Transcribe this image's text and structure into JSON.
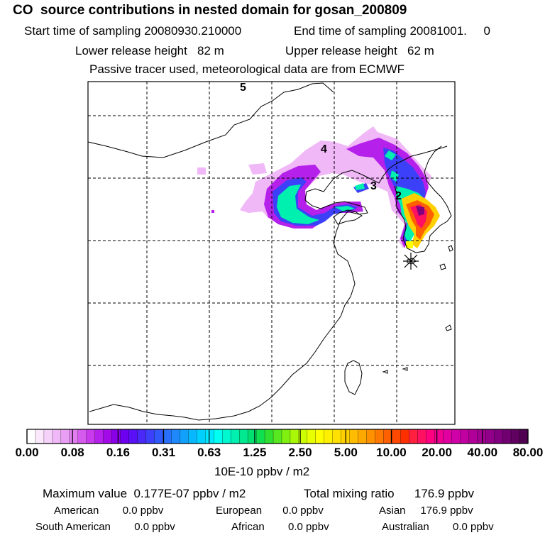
{
  "header": {
    "title": "CO  source contributions in nested domain for gosan_200809",
    "start_label": "Start time of sampling 20080930.210000",
    "end_label": "End time of sampling 20081001.     0",
    "lower_label": "Lower release height   82 m",
    "upper_label": "Upper release height   62 m",
    "tracer_label": "Passive tracer used, meteorological data are from ECMWF"
  },
  "map": {
    "region_labels": [
      "5",
      "4",
      "3",
      "2"
    ],
    "marker": "receptor-star"
  },
  "colorbar": {
    "tick_labels": [
      "0.00",
      "0.08",
      "0.16",
      "0.31",
      "0.63",
      "1.25",
      "2.50",
      "5.00",
      "10.00",
      "20.00",
      "40.00",
      "80.00"
    ],
    "unit_label": "10E-10 ppbv / m2",
    "colors": [
      "#ffffff",
      "#fbe8fd",
      "#f6d2fb",
      "#f0b8f7",
      "#e9a0f4",
      "#e07ef0",
      "#d55aee",
      "#c83aec",
      "#b520ea",
      "#a30ae8",
      "#8a00e6",
      "#6e00f0",
      "#5a10f4",
      "#4a28f6",
      "#3c40f8",
      "#3058fa",
      "#2870fb",
      "#1e88fc",
      "#12a0fd",
      "#08b8fe",
      "#00d0ff",
      "#00e8ff",
      "#00fff0",
      "#00f8d0",
      "#00f0b0",
      "#00e890",
      "#00e070",
      "#10e050",
      "#30e030",
      "#58e820",
      "#80f010",
      "#a8f808",
      "#ccff00",
      "#e8ff00",
      "#ffff00",
      "#fff000",
      "#ffe000",
      "#ffd000",
      "#ffbc00",
      "#ffa800",
      "#ff9000",
      "#ff7800",
      "#ff6000",
      "#ff4800",
      "#ff3000",
      "#ff2040",
      "#ff1060",
      "#ff0080",
      "#f00090",
      "#e000a0",
      "#d000a8",
      "#c000a0",
      "#b00098",
      "#a00090",
      "#900088",
      "#800080",
      "#700070",
      "#600060",
      "#500050"
    ]
  },
  "footer": {
    "max_value": "Maximum value  0.177E-07 ppbv / m2",
    "total_mixing": "Total mixing ratio      176.9 ppbv",
    "american": "American        0.0 ppbv",
    "european": "European       0.0 ppbv",
    "asian": "Asian     176.9 ppbv",
    "south_american": "South American        0.0 ppbv",
    "african": "African        0.0 ppbv",
    "australian": "Australian        0.0 ppbv"
  }
}
